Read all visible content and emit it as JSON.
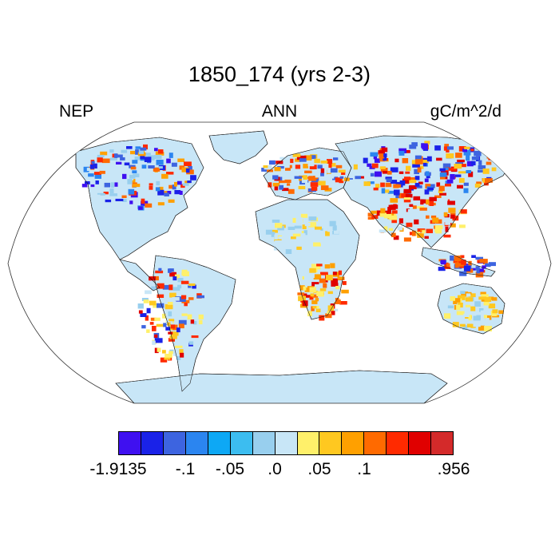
{
  "title": "1850_174 (yrs 2-3)",
  "left_label": "NEP",
  "center_label": "ANN",
  "right_label": "gC/m^2/d",
  "colorbar": {
    "colors": [
      "#3f10f0",
      "#1a22e8",
      "#3d64e0",
      "#2b85f0",
      "#0da8f5",
      "#3cbdf0",
      "#98cfee",
      "#c8e6f7",
      "#fff06a",
      "#ffc820",
      "#ffa000",
      "#ff6a00",
      "#ff2a00",
      "#e00000",
      "#d42a2a"
    ],
    "tick_labels": [
      "-1.9135",
      "-.1",
      "-.05",
      ".0",
      ".05",
      ".1",
      ".956"
    ],
    "tick_boundary_index": [
      0,
      3,
      5,
      7,
      9,
      11,
      15
    ]
  },
  "map": {
    "projection": "Robinson",
    "background": "#ffffff",
    "land_default": "#c8e6f7",
    "antarctica": "#c8e6f7",
    "coastline_color": "#222222"
  }
}
